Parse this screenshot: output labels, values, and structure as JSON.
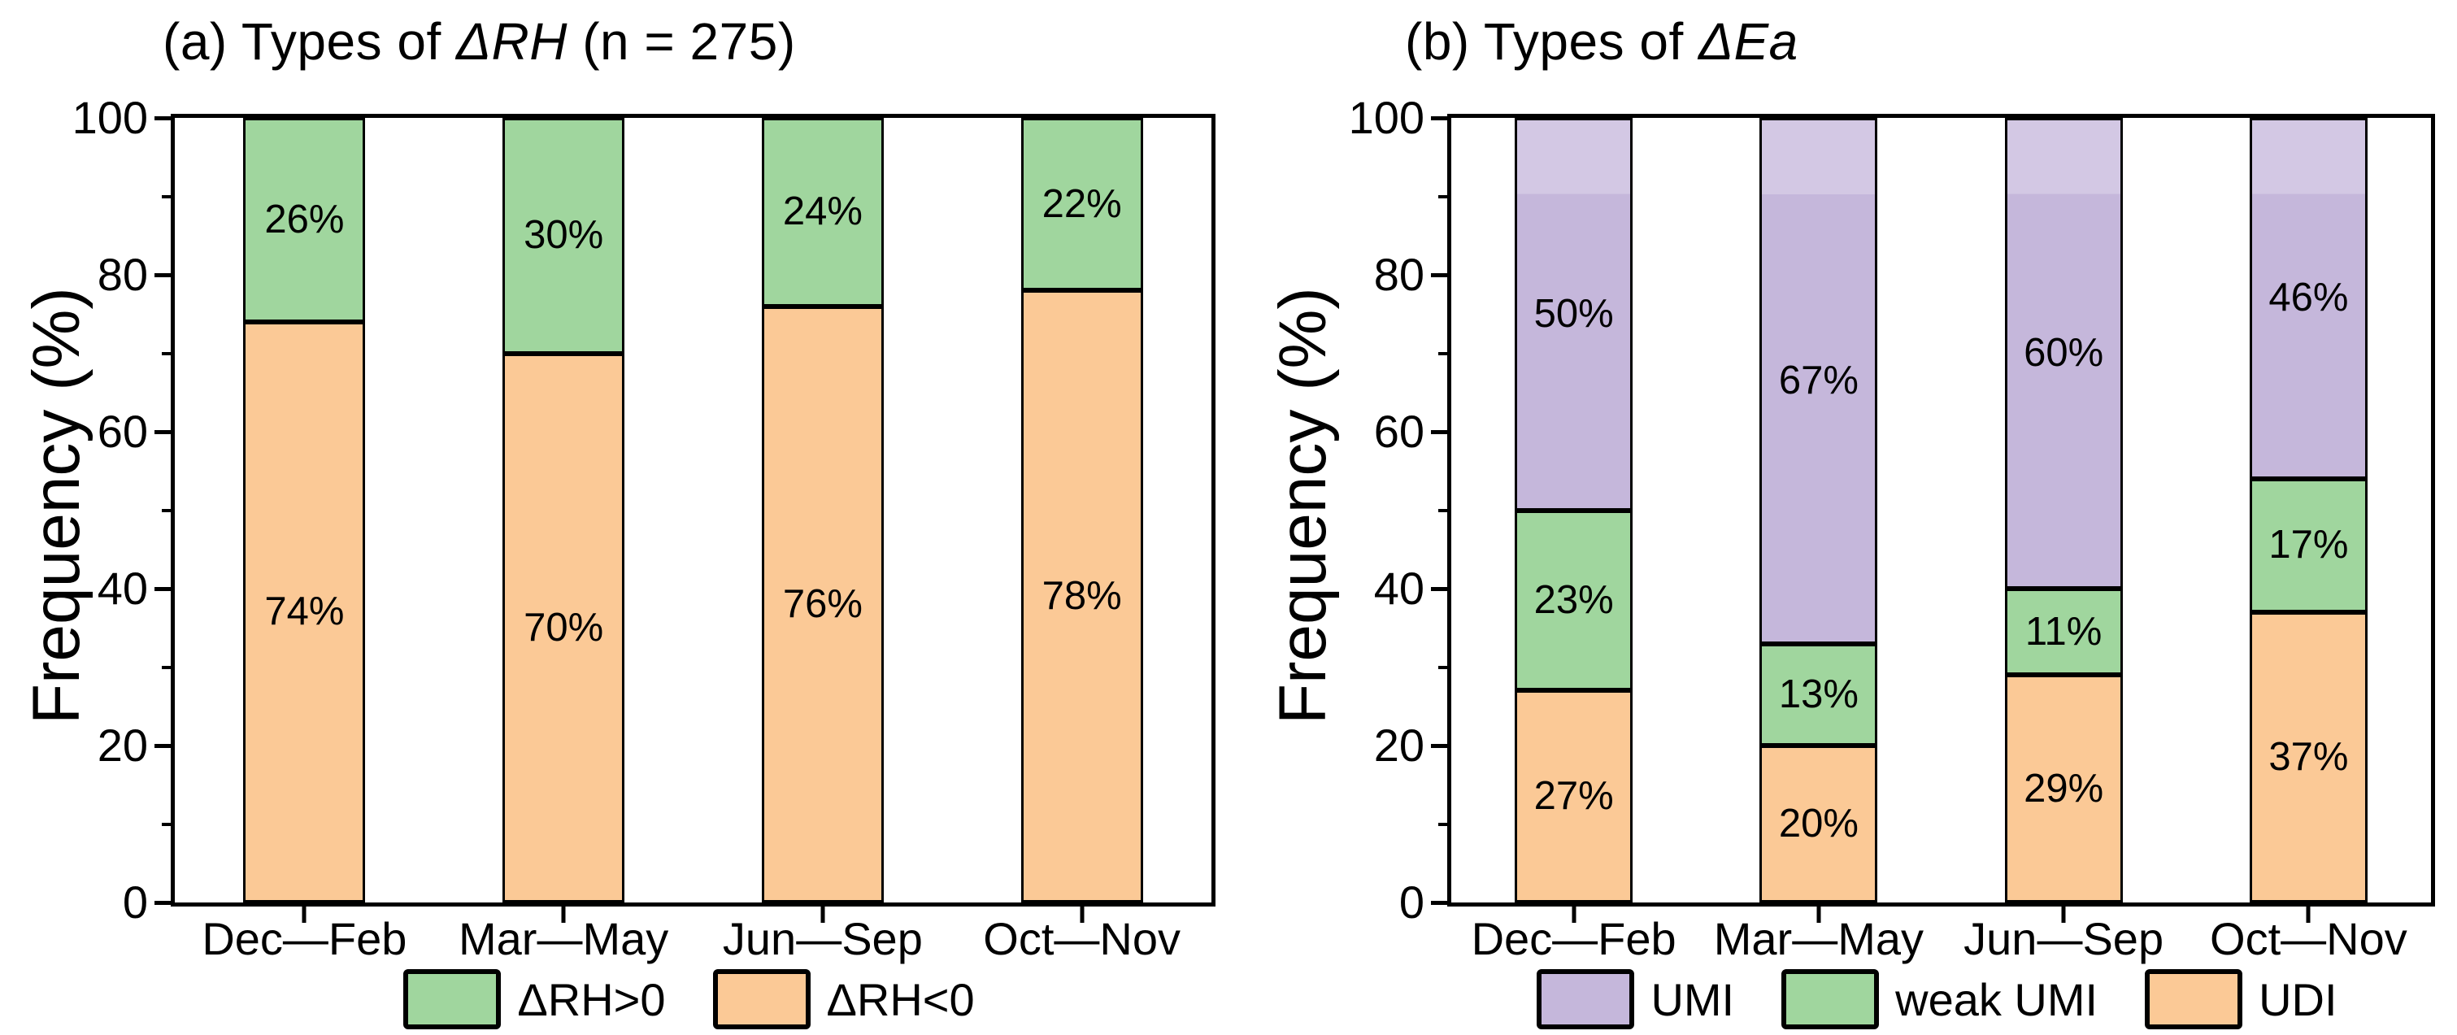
{
  "panels": [
    {
      "title": {
        "prefix": "(a) Types of ",
        "italic": "ΔRH",
        "suffix": " (n = 275)"
      },
      "ylabel": "Frequency (%)"
    },
    {
      "title": {
        "prefix": "(b) Types of ",
        "italic": "ΔEa",
        "suffix": ""
      },
      "ylabel": "Frequency (%)"
    }
  ],
  "chart_data": [
    {
      "type": "bar",
      "stacked": true,
      "title": "(a) Types of ΔRH (n = 275)",
      "ylabel": "Frequency (%)",
      "ylim": [
        0,
        100
      ],
      "yticks": [
        0,
        20,
        40,
        60,
        80,
        100
      ],
      "grid": false,
      "categories": [
        "Dec—Feb",
        "Mar—May",
        "Jun—Sep",
        "Oct—Nov"
      ],
      "series": [
        {
          "name": "ΔRH<0",
          "color": "#fbc996",
          "values": [
            74,
            70,
            76,
            78
          ],
          "labels": [
            "74%",
            "70%",
            "76%",
            "78%"
          ]
        },
        {
          "name": "ΔRH>0",
          "color": "#a0d69e",
          "values": [
            26,
            30,
            24,
            22
          ],
          "labels": [
            "26%",
            "30%",
            "24%",
            "22%"
          ]
        }
      ],
      "legend": [
        {
          "label": "ΔRH>0",
          "color": "#a0d69e"
        },
        {
          "label": "ΔRH<0",
          "color": "#fbc996"
        }
      ],
      "legend_position": "bottom"
    },
    {
      "type": "bar",
      "stacked": true,
      "title": "(b) Types of ΔEa",
      "ylabel": "Frequency (%)",
      "ylim": [
        0,
        100
      ],
      "yticks": [
        0,
        20,
        40,
        60,
        80,
        100
      ],
      "grid": false,
      "categories": [
        "Dec—Feb",
        "Mar—May",
        "Jun—Sep",
        "Oct—Nov"
      ],
      "series": [
        {
          "name": "UDI",
          "color": "#fbc996",
          "values": [
            27,
            20,
            29,
            37
          ],
          "labels": [
            "27%",
            "20%",
            "29%",
            "37%"
          ]
        },
        {
          "name": "weak UMI",
          "color": "#a0d69e",
          "values": [
            23,
            13,
            11,
            17
          ],
          "labels": [
            "23%",
            "13%",
            "11%",
            "17%"
          ]
        },
        {
          "name": "UMI",
          "color": "#c5b7db",
          "band_color": "#d3c8e4",
          "values": [
            50,
            67,
            60,
            46
          ],
          "labels": [
            "50%",
            "67%",
            "60%",
            "46%"
          ]
        }
      ],
      "legend": [
        {
          "label": "UMI",
          "color": "#c5b7db"
        },
        {
          "label": "weak UMI",
          "color": "#a0d69e"
        },
        {
          "label": "UDI",
          "color": "#fbc996"
        }
      ],
      "legend_position": "bottom"
    }
  ],
  "colors": {
    "frame": "#000000",
    "text": "#000000",
    "background": "#ffffff"
  }
}
